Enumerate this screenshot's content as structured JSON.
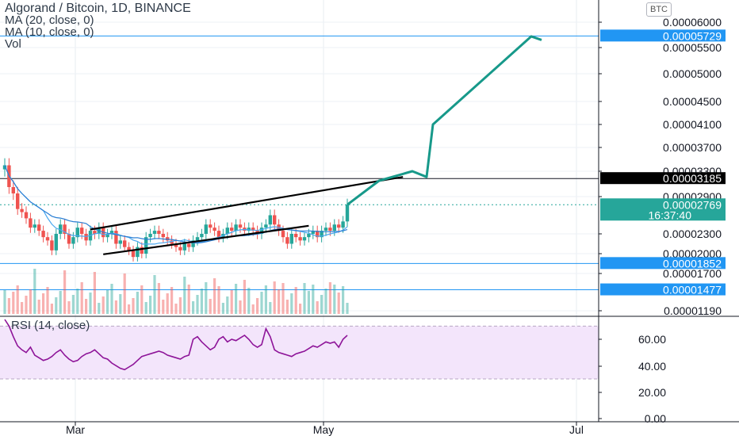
{
  "legend": {
    "title": "Algorand / Bitcoin, 1D, BINANCE",
    "ma20": "MA (20, close, 0)",
    "ma10": "MA (10, close, 0)",
    "vol": "Vol",
    "rsi": "RSI (14, close)"
  },
  "price_unit": "BTC",
  "colors": {
    "up": "#26a69a",
    "down": "#ef5350",
    "ma": "#2196f3",
    "rsi": "#8e1599",
    "rsi_band": "#f3e5fb",
    "projection": "#17998a",
    "level": "#2196f3",
    "axis_text": "#131722"
  },
  "chart_data": [
    {
      "type": "candlestick",
      "title": "Algorand / Bitcoin, 1D, BINANCE",
      "y_ticks": [
        "0.00006000",
        "0.00005500",
        "0.00005000",
        "0.00004500",
        "0.00004100",
        "0.00003700",
        "0.00003300",
        "0.00002900",
        "0.00002300",
        "0.00002000",
        "0.00001700",
        "0.00001190"
      ],
      "x_ticks": [
        "Mar",
        "May",
        "Jul"
      ],
      "y_range": [
        1.19e-05,
        6e-05
      ],
      "price_labels": [
        {
          "value": "0.00005729",
          "kind": "level"
        },
        {
          "value": "0.00003185",
          "kind": "black-level"
        },
        {
          "value": "0.00002769",
          "kind": "current",
          "countdown": "16:37:40"
        },
        {
          "value": "0.00001852",
          "kind": "level"
        },
        {
          "value": "0.00001477",
          "kind": "level"
        }
      ],
      "closes": [
        3.4e-05,
        3.05e-05,
        2.95e-05,
        2.7e-05,
        2.65e-05,
        2.55e-05,
        2.4e-05,
        2.45e-05,
        2.35e-05,
        2.25e-05,
        2.2e-05,
        2.05e-05,
        2.3e-05,
        2.45e-05,
        2.3e-05,
        2.15e-05,
        2.25e-05,
        2.4e-05,
        2.3e-05,
        2.2e-05,
        2.35e-05,
        2.3e-05,
        2.4e-05,
        2.25e-05,
        2.3e-05,
        2.35e-05,
        2.15e-05,
        2.2e-05,
        2.1e-05,
        2.05e-05,
        1.95e-05,
        2.1e-05,
        2e-05,
        2.25e-05,
        2.3e-05,
        2.35e-05,
        2.3e-05,
        2.25e-05,
        2.2e-05,
        2.15e-05,
        2.1e-05,
        2.05e-05,
        2.15e-05,
        2.1e-05,
        2.2e-05,
        2.25e-05,
        2.3e-05,
        2.45e-05,
        2.4e-05,
        2.35e-05,
        2.25e-05,
        2.3e-05,
        2.4e-05,
        2.35e-05,
        2.45e-05,
        2.4e-05,
        2.35e-05,
        2.4e-05,
        2.35e-05,
        2.3e-05,
        2.4e-05,
        2.45e-05,
        2.6e-05,
        2.45e-05,
        2.35e-05,
        2.25e-05,
        2.15e-05,
        2.3e-05,
        2.25e-05,
        2.2e-05,
        2.25e-05,
        2.3e-05,
        2.35e-05,
        2.25e-05,
        2.35e-05,
        2.4e-05,
        2.35e-05,
        2.45e-05,
        2.4e-05,
        2.5e-05,
        2.77e-05
      ],
      "projection_path": [
        2.77e-05,
        3.15e-05,
        3.3e-05,
        3.21e-05,
        4.1e-05,
        5.72e-05,
        5.65e-05
      ]
    },
    {
      "type": "line",
      "name": "RSI (14, close)",
      "y_ticks": [
        "60.00",
        "40.00",
        "20.00",
        "0.00"
      ],
      "y_range": [
        0,
        80
      ],
      "band": [
        30,
        70
      ],
      "values": [
        75,
        70,
        62,
        55,
        52,
        50,
        54,
        48,
        46,
        44,
        45,
        47,
        50,
        52,
        48,
        45,
        43,
        44,
        47,
        49,
        50,
        52,
        49,
        46,
        45,
        42,
        40,
        38,
        37,
        39,
        41,
        44,
        47,
        48,
        49,
        50,
        51,
        50,
        48,
        47,
        46,
        45,
        47,
        48,
        60,
        62,
        58,
        55,
        52,
        54,
        60,
        62,
        58,
        60,
        59,
        61,
        63,
        60,
        56,
        54,
        56,
        68,
        62,
        52,
        50,
        49,
        48,
        47,
        49,
        50,
        51,
        53,
        55,
        54,
        56,
        58,
        57,
        58,
        54,
        60,
        63
      ]
    }
  ]
}
